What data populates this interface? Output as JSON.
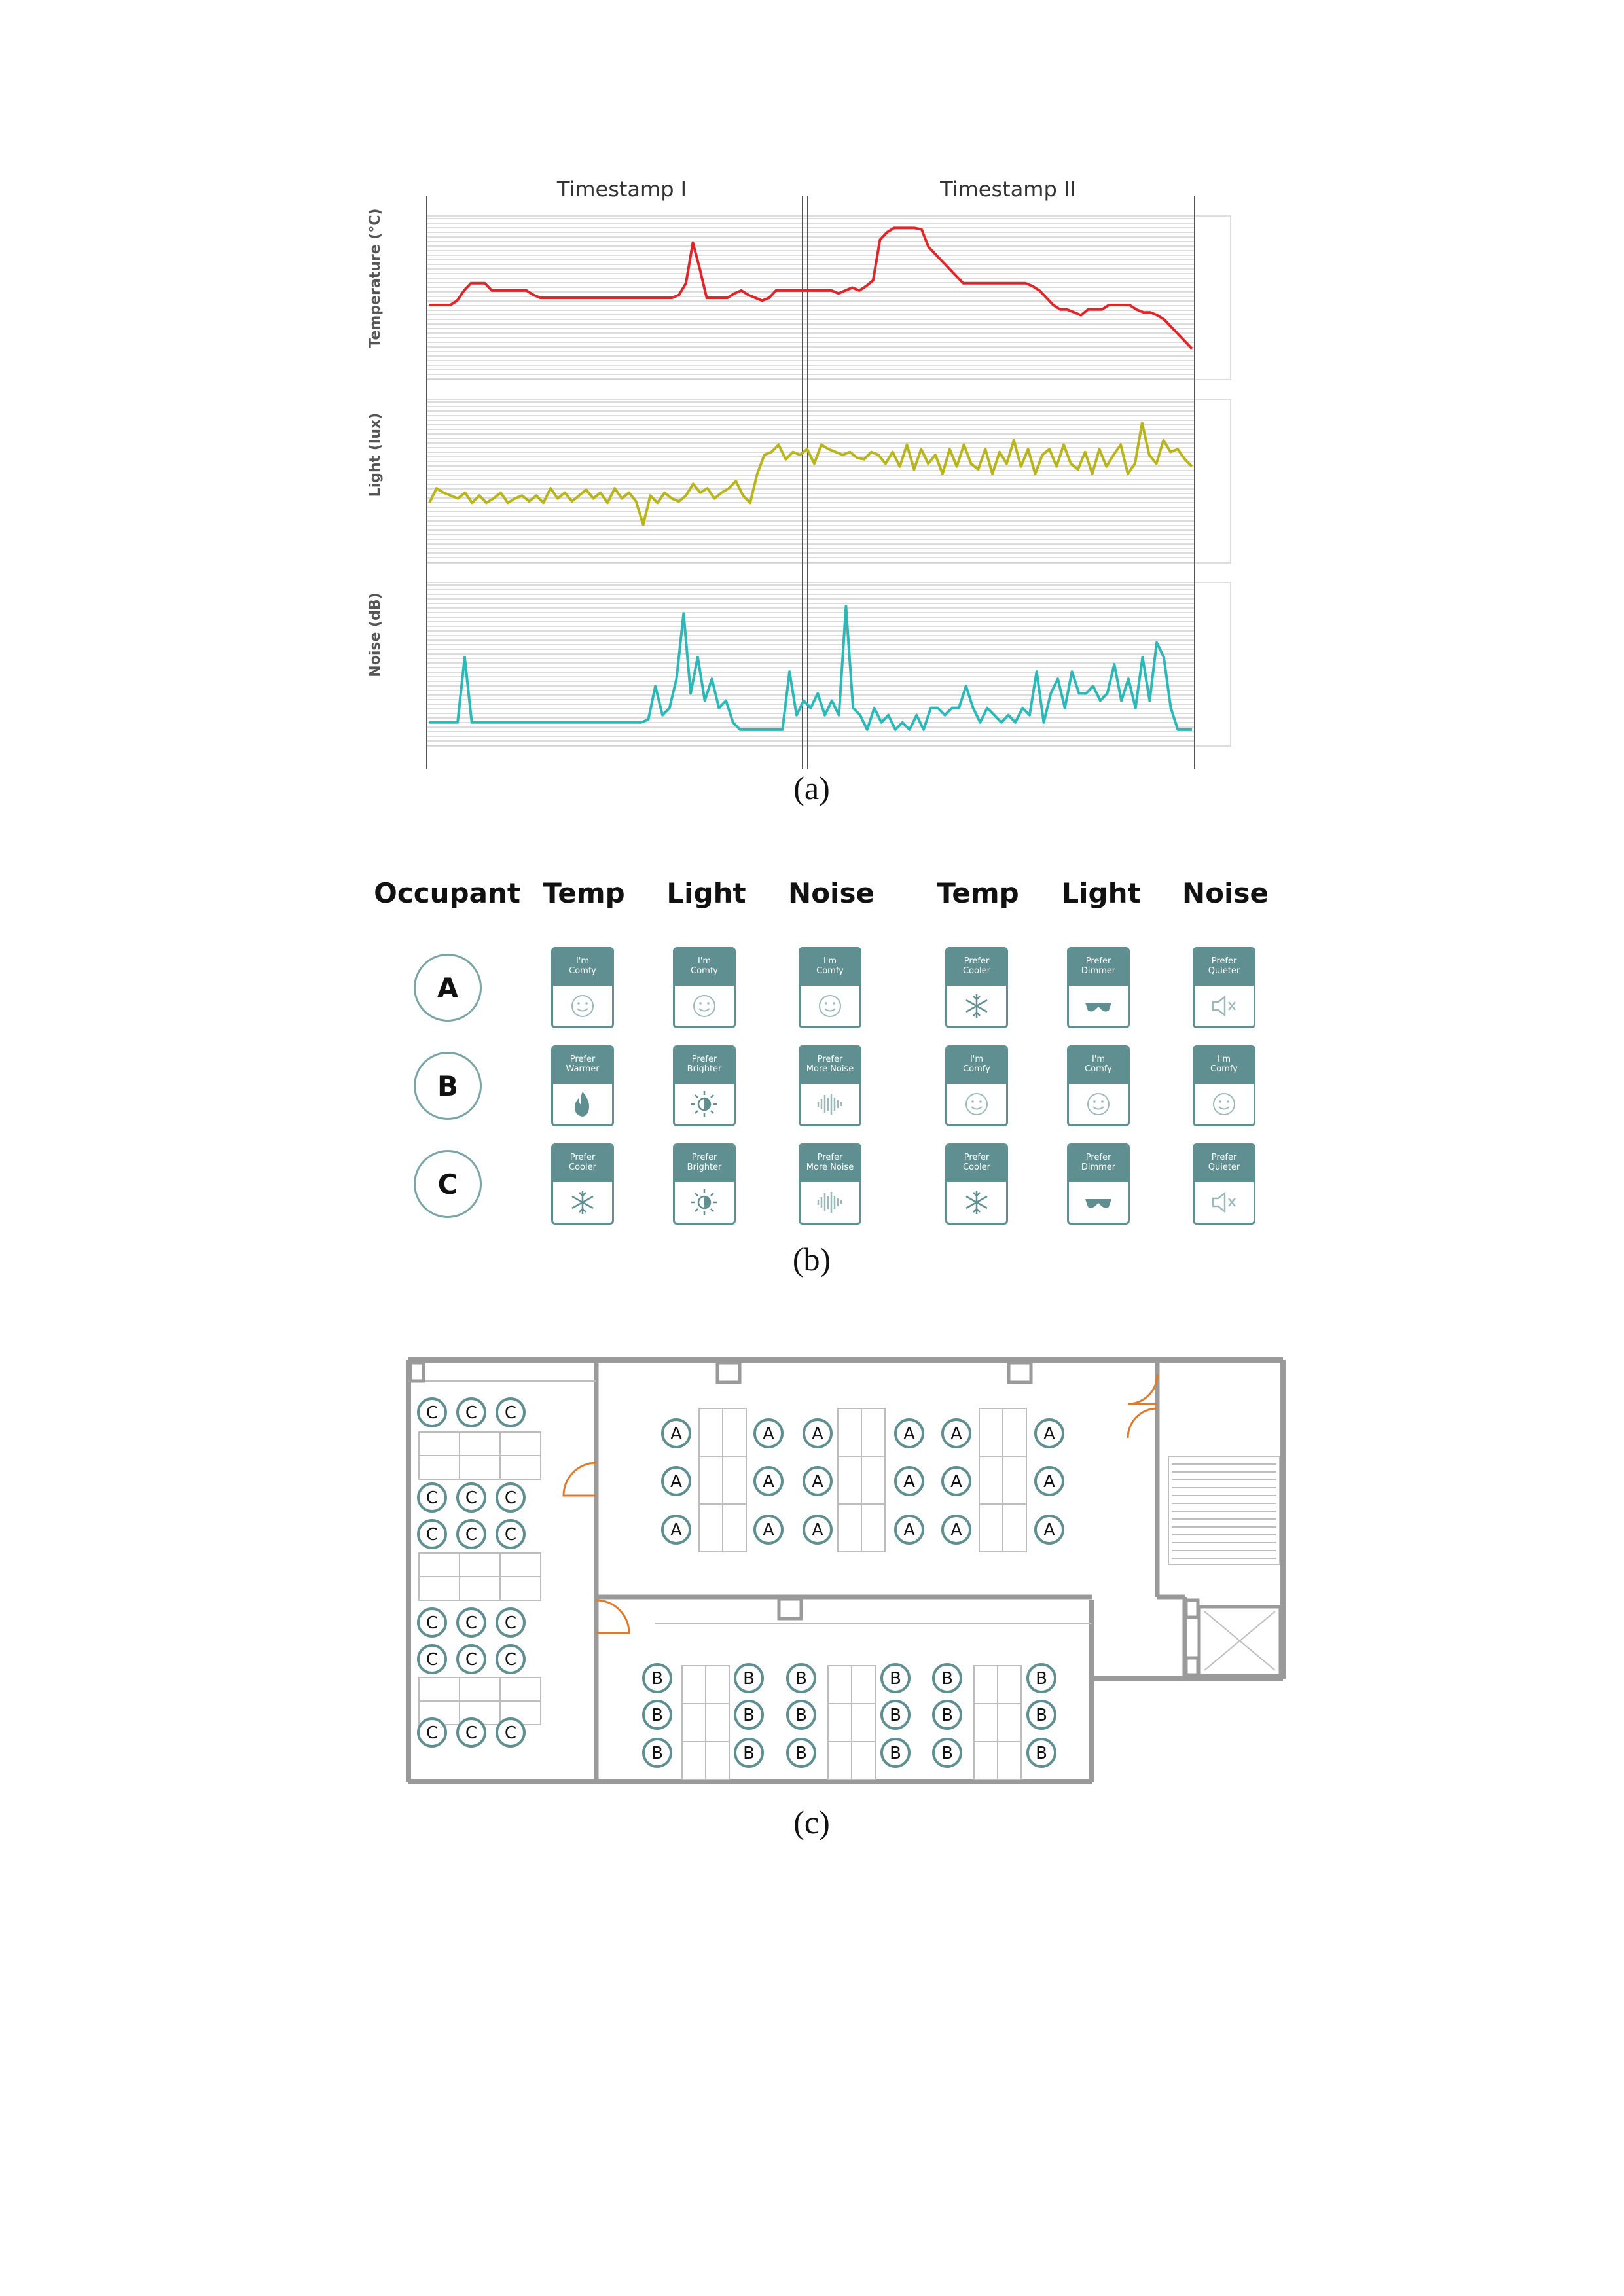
{
  "figure_a": {
    "caption": "(a)",
    "timestamps": [
      "Timestamp I",
      "Timestamp II"
    ],
    "panels": [
      {
        "label": "Temperature (°C)",
        "color": "#e0262a"
      },
      {
        "label": "Light (lux)",
        "color": "#b8b51c"
      },
      {
        "label": "Noise (dB)",
        "color": "#2db8b8"
      }
    ],
    "chart_data": {
      "type": "line",
      "title": "",
      "series": [
        {
          "name": "Temperature (°C)",
          "values": [
            0.45,
            0.45,
            0.45,
            0.45,
            0.48,
            0.55,
            0.6,
            0.6,
            0.6,
            0.55,
            0.55,
            0.55,
            0.55,
            0.55,
            0.55,
            0.52,
            0.5,
            0.5,
            0.5,
            0.5,
            0.5,
            0.5,
            0.5,
            0.5,
            0.5,
            0.5,
            0.5,
            0.5,
            0.5,
            0.5,
            0.5,
            0.5,
            0.5,
            0.5,
            0.5,
            0.5,
            0.52,
            0.6,
            0.88,
            0.7,
            0.5,
            0.5,
            0.5,
            0.5,
            0.53,
            0.55,
            0.52,
            0.5,
            0.48,
            0.5,
            0.55,
            0.55,
            0.55,
            0.55,
            0.55,
            0.55,
            0.55,
            0.55,
            0.55,
            0.53,
            0.55,
            0.57,
            0.55,
            0.58,
            0.62,
            0.9,
            0.95,
            0.98,
            0.98,
            0.98,
            0.98,
            0.97,
            0.85,
            0.8,
            0.75,
            0.7,
            0.65,
            0.6,
            0.6,
            0.6,
            0.6,
            0.6,
            0.6,
            0.6,
            0.6,
            0.6,
            0.6,
            0.58,
            0.55,
            0.5,
            0.45,
            0.42,
            0.42,
            0.4,
            0.38,
            0.42,
            0.42,
            0.42,
            0.45,
            0.45,
            0.45,
            0.45,
            0.42,
            0.4,
            0.4,
            0.38,
            0.35,
            0.3,
            0.25,
            0.2,
            0.15
          ]
        },
        {
          "name": "Light (lux)",
          "values": [
            0.35,
            0.45,
            0.42,
            0.4,
            0.38,
            0.42,
            0.35,
            0.4,
            0.35,
            0.38,
            0.42,
            0.35,
            0.38,
            0.4,
            0.36,
            0.4,
            0.35,
            0.45,
            0.38,
            0.42,
            0.36,
            0.4,
            0.44,
            0.38,
            0.42,
            0.35,
            0.45,
            0.38,
            0.42,
            0.36,
            0.2,
            0.4,
            0.35,
            0.42,
            0.38,
            0.36,
            0.4,
            0.48,
            0.42,
            0.45,
            0.38,
            0.42,
            0.45,
            0.5,
            0.4,
            0.35,
            0.55,
            0.68,
            0.7,
            0.75,
            0.65,
            0.7,
            0.68,
            0.72,
            0.62,
            0.75,
            0.72,
            0.7,
            0.68,
            0.7,
            0.66,
            0.65,
            0.7,
            0.68,
            0.62,
            0.7,
            0.6,
            0.75,
            0.58,
            0.72,
            0.62,
            0.68,
            0.55,
            0.72,
            0.6,
            0.75,
            0.62,
            0.58,
            0.72,
            0.55,
            0.7,
            0.62,
            0.78,
            0.6,
            0.72,
            0.55,
            0.68,
            0.72,
            0.6,
            0.75,
            0.62,
            0.58,
            0.7,
            0.55,
            0.72,
            0.6,
            0.68,
            0.75,
            0.55,
            0.62,
            0.9,
            0.68,
            0.62,
            0.78,
            0.7,
            0.72,
            0.65,
            0.6
          ]
        },
        {
          "name": "Noise (dB)",
          "values": [
            0.1,
            0.1,
            0.1,
            0.1,
            0.1,
            0.55,
            0.1,
            0.1,
            0.1,
            0.1,
            0.1,
            0.1,
            0.1,
            0.1,
            0.1,
            0.1,
            0.1,
            0.1,
            0.1,
            0.1,
            0.1,
            0.1,
            0.1,
            0.1,
            0.1,
            0.1,
            0.1,
            0.1,
            0.1,
            0.1,
            0.1,
            0.12,
            0.35,
            0.15,
            0.2,
            0.4,
            0.85,
            0.3,
            0.55,
            0.25,
            0.4,
            0.2,
            0.25,
            0.1,
            0.05,
            0.05,
            0.05,
            0.05,
            0.05,
            0.05,
            0.05,
            0.45,
            0.15,
            0.25,
            0.2,
            0.3,
            0.15,
            0.25,
            0.15,
            0.9,
            0.2,
            0.15,
            0.05,
            0.2,
            0.1,
            0.15,
            0.05,
            0.1,
            0.05,
            0.15,
            0.05,
            0.2,
            0.2,
            0.15,
            0.2,
            0.2,
            0.35,
            0.2,
            0.1,
            0.2,
            0.15,
            0.1,
            0.15,
            0.1,
            0.2,
            0.15,
            0.45,
            0.1,
            0.3,
            0.4,
            0.2,
            0.45,
            0.3,
            0.3,
            0.35,
            0.25,
            0.3,
            0.5,
            0.25,
            0.4,
            0.2,
            0.55,
            0.25,
            0.65,
            0.55,
            0.2,
            0.05,
            0.05,
            0.05
          ]
        }
      ]
    }
  },
  "figure_b": {
    "caption": "(b)",
    "headers": [
      "Occupant",
      "Temp",
      "Light",
      "Noise",
      "Temp",
      "Light",
      "Noise"
    ],
    "rows": [
      {
        "occupant": "A",
        "cards": [
          {
            "label1": "I'm",
            "label2": "Comfy",
            "icon": "smile-icon"
          },
          {
            "label1": "I'm",
            "label2": "Comfy",
            "icon": "smile-icon"
          },
          {
            "label1": "I'm",
            "label2": "Comfy",
            "icon": "smile-icon"
          },
          {
            "label1": "Prefer",
            "label2": "Cooler",
            "icon": "snowflake-icon"
          },
          {
            "label1": "Prefer",
            "label2": "Dimmer",
            "icon": "sunglasses-icon"
          },
          {
            "label1": "Prefer",
            "label2": "Quieter",
            "icon": "mute-icon"
          }
        ]
      },
      {
        "occupant": "B",
        "cards": [
          {
            "label1": "Prefer",
            "label2": "Warmer",
            "icon": "flame-icon"
          },
          {
            "label1": "Prefer",
            "label2": "Brighter",
            "icon": "brightness-icon"
          },
          {
            "label1": "Prefer",
            "label2": "More Noise",
            "icon": "soundwave-icon"
          },
          {
            "label1": "I'm",
            "label2": "Comfy",
            "icon": "smile-icon"
          },
          {
            "label1": "I'm",
            "label2": "Comfy",
            "icon": "smile-icon"
          },
          {
            "label1": "I'm",
            "label2": "Comfy",
            "icon": "smile-icon"
          }
        ]
      },
      {
        "occupant": "C",
        "cards": [
          {
            "label1": "Prefer",
            "label2": "Cooler",
            "icon": "snowflake-icon"
          },
          {
            "label1": "Prefer",
            "label2": "Brighter",
            "icon": "brightness-icon"
          },
          {
            "label1": "Prefer",
            "label2": "More Noise",
            "icon": "soundwave-icon"
          },
          {
            "label1": "Prefer",
            "label2": "Cooler",
            "icon": "snowflake-icon"
          },
          {
            "label1": "Prefer",
            "label2": "Dimmer",
            "icon": "sunglasses-icon"
          },
          {
            "label1": "Prefer",
            "label2": "Quieter",
            "icon": "mute-icon"
          }
        ]
      }
    ]
  },
  "figure_c": {
    "caption": "(c)",
    "seat_labels": {
      "left_room": "C",
      "top_room": "A",
      "bottom_room": "B"
    },
    "accent_color": "#5f8f90",
    "door_color": "#e07a2a"
  }
}
